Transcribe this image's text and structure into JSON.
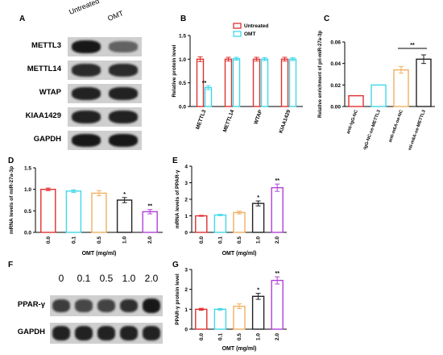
{
  "panels": {
    "A": "A",
    "B": "B",
    "C": "C",
    "D": "D",
    "E": "E",
    "F": "F",
    "G": "G"
  },
  "blotA": {
    "lanes": [
      "Untreated",
      "OMT"
    ],
    "rows": [
      {
        "label": "METTL3",
        "intensities": [
          0.95,
          0.55
        ]
      },
      {
        "label": "METTL14",
        "intensities": [
          0.85,
          0.85
        ]
      },
      {
        "label": "WTAP",
        "intensities": [
          0.9,
          0.9
        ]
      },
      {
        "label": "KIAA1429",
        "intensities": [
          0.9,
          0.9
        ]
      },
      {
        "label": "GAPDH",
        "intensities": [
          0.95,
          0.95
        ]
      }
    ]
  },
  "blotF": {
    "lanes": [
      "0",
      "0.1",
      "0.5",
      "1.0",
      "2.0"
    ],
    "rows": [
      {
        "label": "PPAR-γ",
        "intensities": [
          0.75,
          0.7,
          0.72,
          0.82,
          0.95
        ]
      },
      {
        "label": "GAPDH",
        "intensities": [
          0.9,
          0.9,
          0.9,
          0.9,
          0.9
        ]
      }
    ]
  },
  "chart_data": [
    {
      "id": "B",
      "type": "bar",
      "categories": [
        "METTL3",
        "METTL14",
        "WTAP",
        "KIAA1429"
      ],
      "series": [
        {
          "name": "Untreated",
          "color": "#e03030",
          "values": [
            1.0,
            1.0,
            1.0,
            1.0
          ],
          "errors": [
            0.05,
            0.04,
            0.04,
            0.04
          ]
        },
        {
          "name": "OMT",
          "color": "#40d8e8",
          "values": [
            0.4,
            1.01,
            1.0,
            1.0
          ],
          "errors": [
            0.04,
            0.03,
            0.03,
            0.03
          ]
        }
      ],
      "ylabel": "Relative protein level",
      "ylim": [
        0.0,
        1.5
      ],
      "yticks": [
        "0.0",
        "0.5",
        "1.0",
        "1.5"
      ],
      "annotations": [
        {
          "category": "METTL3",
          "series": "OMT",
          "text": "**"
        }
      ],
      "legend": "top-right"
    },
    {
      "id": "C",
      "type": "bar",
      "categories": [
        "anti-IgG-NC",
        "anti-IgG-NC-oe-METTL3",
        "anti-m6A-oe-NC",
        "anti-m6A-oe-METTL3"
      ],
      "values": [
        0.01,
        0.02,
        0.034,
        0.044
      ],
      "errors": [
        0.0,
        0.0,
        0.003,
        0.004
      ],
      "colors": [
        "#e03030",
        "#40d8e8",
        "#f0b060",
        "#222222"
      ],
      "ylabel": "Relative enrichment of pri-miR-27a-3p",
      "ylim": [
        0.0,
        0.06
      ],
      "yticks": [
        "0.00",
        "0.02",
        "0.04",
        "0.06"
      ],
      "annotations": [
        {
          "from": 2,
          "to": 3,
          "text": "**"
        }
      ]
    },
    {
      "id": "D",
      "type": "bar",
      "categories": [
        "0.0",
        "0.1",
        "0.5",
        "1.0",
        "2.0"
      ],
      "values": [
        1.0,
        0.96,
        0.91,
        0.75,
        0.48
      ],
      "errors": [
        0.03,
        0.03,
        0.06,
        0.06,
        0.05
      ],
      "colors": [
        "#e03030",
        "#40d8e8",
        "#f0b060",
        "#222222",
        "#b040d8"
      ],
      "xlabel": "OMT (mg/ml)",
      "ylabel": "mRNA levels of miR-27a-3p",
      "ylim": [
        0.0,
        1.5
      ],
      "yticks": [
        "0.0",
        "0.5",
        "1.0",
        "1.5"
      ],
      "annotations": [
        {
          "index": 3,
          "text": "*"
        },
        {
          "index": 4,
          "text": "**"
        }
      ]
    },
    {
      "id": "E",
      "type": "bar",
      "categories": [
        "0.0",
        "0.1",
        "0.5",
        "1.0",
        "2.0"
      ],
      "values": [
        1.0,
        1.05,
        1.2,
        1.75,
        2.7
      ],
      "errors": [
        0.03,
        0.04,
        0.08,
        0.15,
        0.22
      ],
      "colors": [
        "#e03030",
        "#40d8e8",
        "#f0b060",
        "#222222",
        "#b040d8"
      ],
      "xlabel": "OMT (mg/ml)",
      "ylabel": "mRNA levels of PPAR-γ",
      "ylim": [
        0.0,
        4.0
      ],
      "yticks": [
        "0",
        "1",
        "2",
        "3",
        "4"
      ],
      "annotations": [
        {
          "index": 3,
          "text": "*"
        },
        {
          "index": 4,
          "text": "**"
        }
      ]
    },
    {
      "id": "G",
      "type": "bar",
      "categories": [
        "0.0",
        "0.1",
        "0.5",
        "1.0",
        "2.0"
      ],
      "values": [
        1.0,
        1.0,
        1.15,
        1.65,
        2.45
      ],
      "errors": [
        0.05,
        0.04,
        0.12,
        0.15,
        0.18
      ],
      "colors": [
        "#e03030",
        "#40d8e8",
        "#f0b060",
        "#222222",
        "#b040d8"
      ],
      "xlabel": "OMT (mg/ml)",
      "ylabel": "PPAR-γ protein level",
      "ylim": [
        0.0,
        3.0
      ],
      "yticks": [
        "0",
        "1",
        "2",
        "3"
      ],
      "annotations": [
        {
          "index": 3,
          "text": "*"
        },
        {
          "index": 4,
          "text": "**"
        }
      ]
    }
  ]
}
